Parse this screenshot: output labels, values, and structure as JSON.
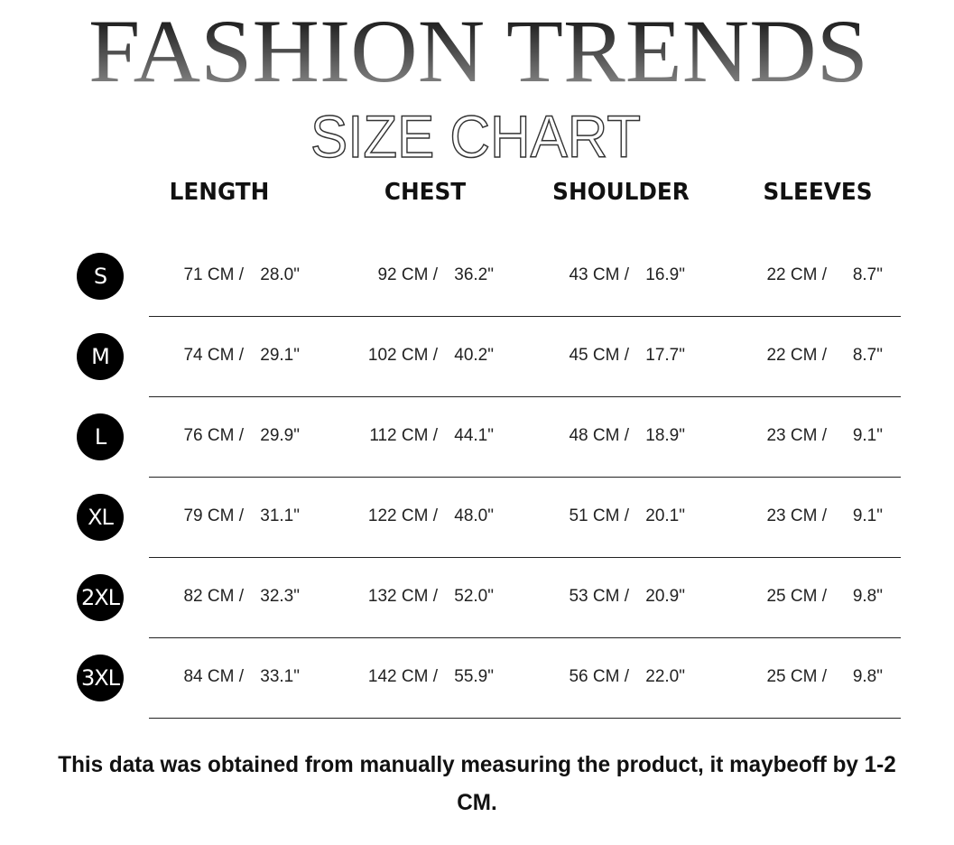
{
  "title": {
    "main": "FASHION TRENDS",
    "sub": "SIZE CHART"
  },
  "columns": [
    "LENGTH",
    "CHEST",
    "SHOULDER",
    "SLEEVES"
  ],
  "rows": [
    {
      "size": "S",
      "length": {
        "cm": "71 CM /",
        "inch": "28.0\""
      },
      "chest": {
        "cm": "92 CM /",
        "inch": "36.2\""
      },
      "shoulder": {
        "cm": "43 CM /",
        "inch": "16.9\""
      },
      "sleeves": {
        "cm": "22 CM /",
        "inch": "8.7\""
      }
    },
    {
      "size": "M",
      "length": {
        "cm": "74 CM /",
        "inch": "29.1\""
      },
      "chest": {
        "cm": "102 CM /",
        "inch": "40.2\""
      },
      "shoulder": {
        "cm": "45 CM /",
        "inch": "17.7\""
      },
      "sleeves": {
        "cm": "22 CM /",
        "inch": "8.7\""
      }
    },
    {
      "size": "L",
      "length": {
        "cm": "76 CM /",
        "inch": "29.9\""
      },
      "chest": {
        "cm": "112 CM /",
        "inch": "44.1\""
      },
      "shoulder": {
        "cm": "48 CM /",
        "inch": "18.9\""
      },
      "sleeves": {
        "cm": "23 CM /",
        "inch": "9.1\""
      }
    },
    {
      "size": "XL",
      "length": {
        "cm": "79 CM /",
        "inch": "31.1\""
      },
      "chest": {
        "cm": "122 CM /",
        "inch": "48.0\""
      },
      "shoulder": {
        "cm": "51 CM /",
        "inch": "20.1\""
      },
      "sleeves": {
        "cm": "23 CM /",
        "inch": "9.1\""
      }
    },
    {
      "size": "2XL",
      "length": {
        "cm": "82 CM /",
        "inch": "32.3\""
      },
      "chest": {
        "cm": "132 CM /",
        "inch": "52.0\""
      },
      "shoulder": {
        "cm": "53 CM /",
        "inch": "20.9\""
      },
      "sleeves": {
        "cm": "25 CM /",
        "inch": "9.8\""
      }
    },
    {
      "size": "3XL",
      "length": {
        "cm": "84 CM /",
        "inch": "33.1\""
      },
      "chest": {
        "cm": "142 CM /",
        "inch": "55.9\""
      },
      "shoulder": {
        "cm": "56 CM /",
        "inch": "22.0\""
      },
      "sleeves": {
        "cm": "25 CM /",
        "inch": "9.8\""
      }
    }
  ],
  "note": "This data was obtained from manually measuring the product, it maybeoff by 1-2 CM."
}
